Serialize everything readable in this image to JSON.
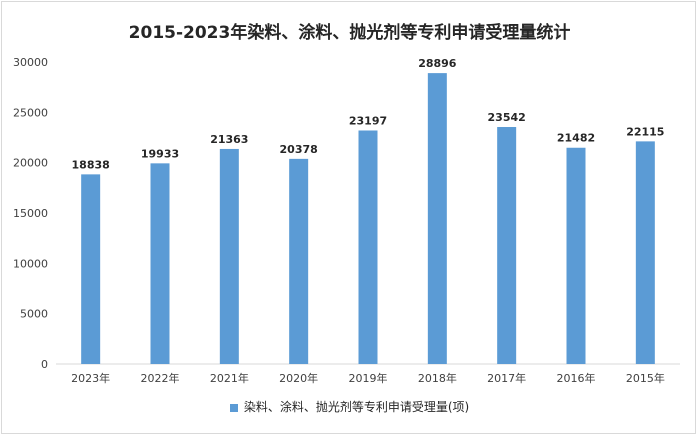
{
  "chart_data": {
    "type": "bar",
    "title": "2015-2023年染料、涂料、抛光剂等专利申请受理量统计",
    "categories": [
      "2023年",
      "2022年",
      "2021年",
      "2020年",
      "2019年",
      "2018年",
      "2017年",
      "2016年",
      "2015年"
    ],
    "series": [
      {
        "name": "染料、涂料、抛光剂等专利申请受理量(项)",
        "values": [
          18838,
          19933,
          21363,
          20378,
          23197,
          28896,
          23542,
          21482,
          22115
        ],
        "color": "#5b9bd5"
      }
    ],
    "yticks": [
      "0",
      "5000",
      "10000",
      "15000",
      "20000",
      "25000",
      "30000"
    ],
    "ylim": [
      0,
      30000
    ],
    "grid": false,
    "legend_position": "bottom"
  }
}
